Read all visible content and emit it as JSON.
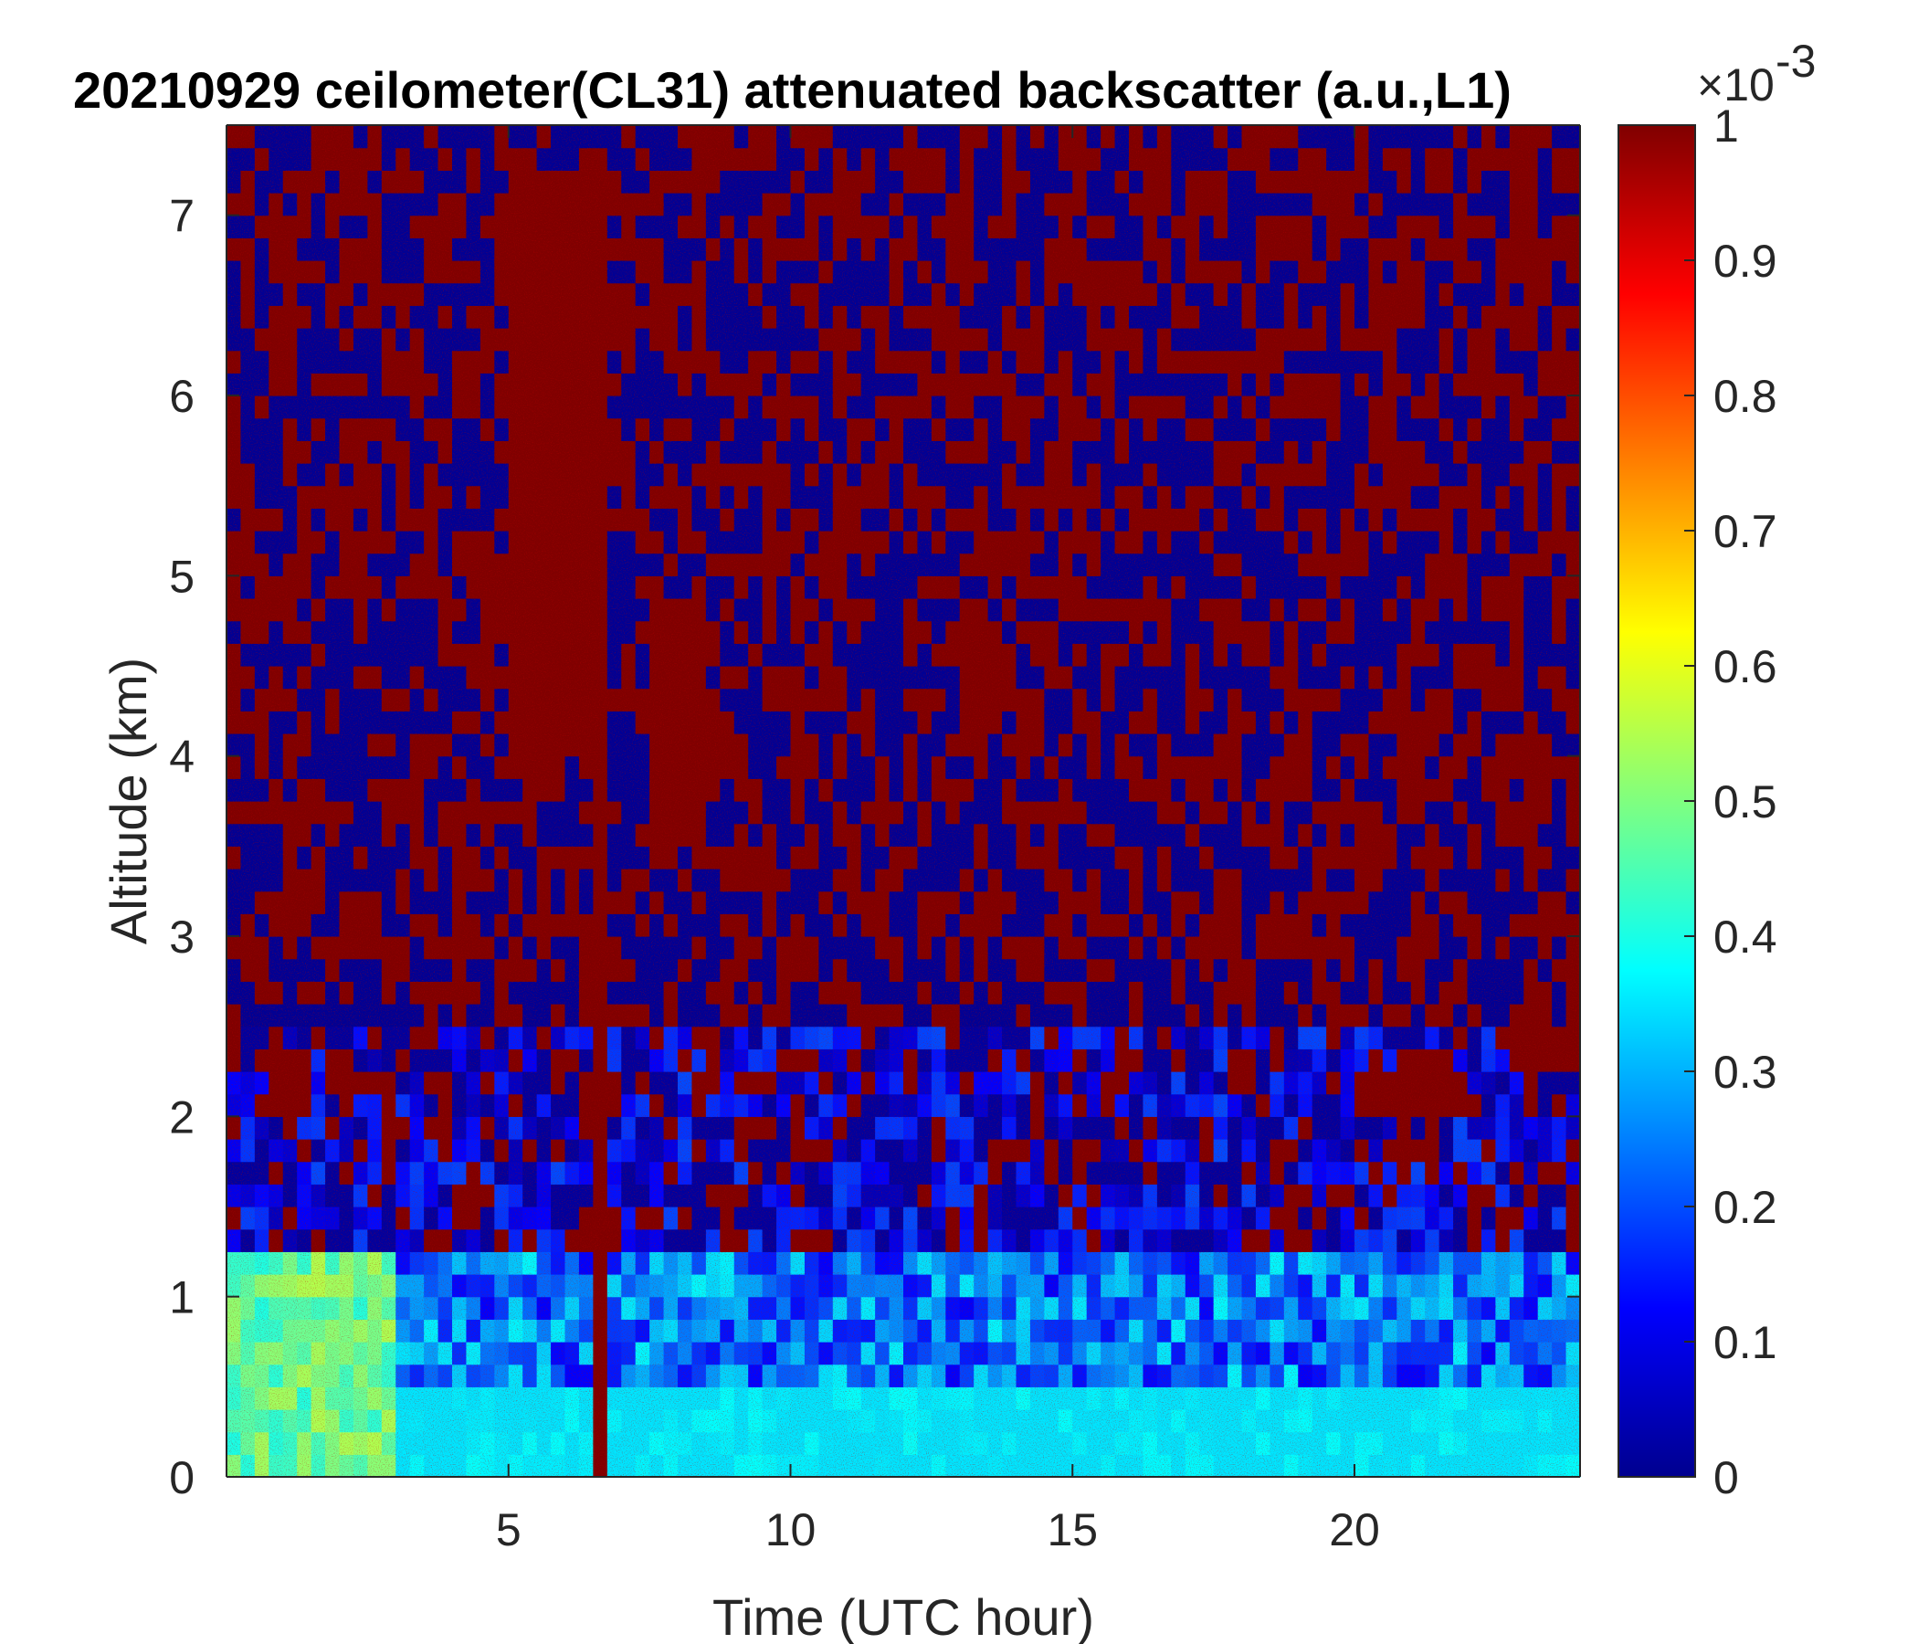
{
  "chart_data": {
    "type": "heatmap",
    "title": "20210929 ceilometer(CL31) attenuated backscatter (a.u.,L1)",
    "xlabel": "Time (UTC hour)",
    "ylabel": "Altitude (km)",
    "xlim": [
      0,
      24
    ],
    "ylim": [
      0,
      7.5
    ],
    "xticks": [
      5,
      10,
      15,
      20
    ],
    "xtick_labels": [
      "5",
      "10",
      "15",
      "20"
    ],
    "yticks": [
      0,
      1,
      2,
      3,
      4,
      5,
      6,
      7
    ],
    "ytick_labels": [
      "0",
      "1",
      "2",
      "3",
      "4",
      "5",
      "6",
      "7"
    ],
    "colorbar": {
      "colormap": "jet",
      "clim": [
        0,
        0.001
      ],
      "ticks": [
        0,
        0.1,
        0.2,
        0.3,
        0.4,
        0.5,
        0.6,
        0.7,
        0.8,
        0.9,
        1
      ],
      "tick_labels": [
        "0",
        "0.1",
        "0.2",
        "0.3",
        "0.4",
        "0.5",
        "0.6",
        "0.7",
        "0.8",
        "0.9",
        "1"
      ],
      "exponent_base": "×10",
      "exponent_power": "-3"
    },
    "features": [
      {
        "kind": "surface-layer",
        "t": [
          0,
          24
        ],
        "z": [
          0,
          0.5
        ],
        "level": 0.35
      },
      {
        "kind": "enhanced-layer",
        "t": [
          0,
          3
        ],
        "z": [
          0,
          1.2
        ],
        "level": 0.55
      },
      {
        "kind": "cloud-streak",
        "t": [
          4.8,
          6.6
        ],
        "z": [
          4.0,
          7.2
        ],
        "level": 1.0
      },
      {
        "kind": "cloud-streak",
        "t": [
          7.5,
          8.5
        ],
        "z": [
          3.5,
          4.8
        ],
        "level": 1.0
      },
      {
        "kind": "cloud-streak",
        "t": [
          9.9,
          10.2
        ],
        "z": [
          3.8,
          4.5
        ],
        "level": 1.0
      },
      {
        "kind": "cloud-layer",
        "t": [
          0.7,
          1.3
        ],
        "z": [
          1.9,
          2.3
        ],
        "level": 1.0
      },
      {
        "kind": "cloud-layer",
        "t": [
          19.8,
          22.0
        ],
        "z": [
          1.9,
          2.2
        ],
        "level": 1.0
      },
      {
        "kind": "cloud-layer",
        "t": [
          22.6,
          24.0
        ],
        "z": [
          2.2,
          2.4
        ],
        "level": 1.0
      },
      {
        "kind": "precip-line",
        "t": [
          6.4,
          6.6
        ],
        "z": [
          0,
          5.0
        ],
        "level": 1.0
      }
    ]
  },
  "colors": {
    "low": "#00008f",
    "high": "#800000",
    "axis": "#262626"
  }
}
